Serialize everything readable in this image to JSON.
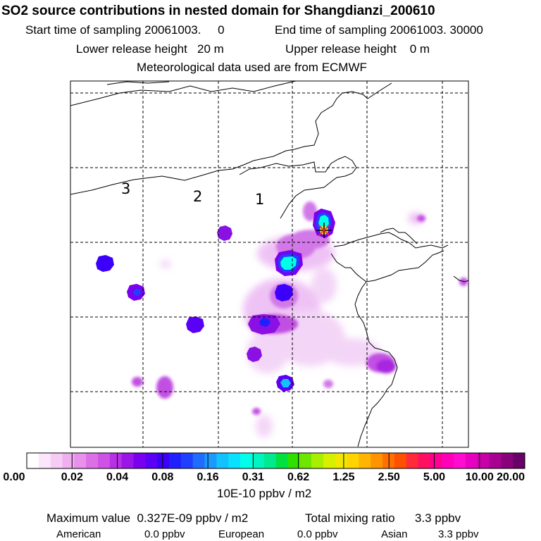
{
  "header": {
    "title": "SO2 source contributions in nested domain for Shangdianzi_200610",
    "start_label": "Start time of sampling 20061003.     0",
    "end_label": "End time of sampling 20061003. 30000",
    "lower_label": "Lower release height   20 m",
    "upper_label": "Upper release height    0 m",
    "met_label": "Meteorological data used are from ECMWF"
  },
  "map": {
    "region_labels": [
      "3",
      "2",
      "1"
    ],
    "station_marker": "star-marker-icon",
    "gridlines": "dashed",
    "plumes": [
      {
        "type": "hotspot",
        "level": 0.16,
        "name": "north-plume"
      },
      {
        "type": "hotspot",
        "level": 0.16,
        "name": "central-plume"
      },
      {
        "type": "hotspot",
        "level": 0.06,
        "name": "mid-spot"
      },
      {
        "type": "hotspot",
        "level": 0.06,
        "name": "south-spot"
      },
      {
        "type": "hotspot",
        "level": 0.05,
        "name": "west-spot"
      },
      {
        "type": "hotspot",
        "level": 0.05,
        "name": "southwest-spot"
      }
    ]
  },
  "colorbar": {
    "ticks": [
      "0.00",
      "0.02",
      "0.04",
      "0.08",
      "0.16",
      "0.31",
      "0.62",
      "1.25",
      "2.50",
      "5.00",
      "10.00",
      "20.00"
    ],
    "colors": [
      "#ffffff",
      "#fbe6fb",
      "#f6ccf6",
      "#f0b0f0",
      "#e890ec",
      "#dc6fe6",
      "#cf52e6",
      "#b830e6",
      "#9a15e8",
      "#7a00f0",
      "#5a00f5",
      "#3c00fa",
      "#2020ff",
      "#2040ff",
      "#1f6cff",
      "#1a99ff",
      "#12c2ff",
      "#0ae0ff",
      "#00ffe8",
      "#00f5c0",
      "#00eb8f",
      "#00e040",
      "#2de000",
      "#6ee600",
      "#a8ee00",
      "#d6f000",
      "#f0e800",
      "#ffd400",
      "#ffb400",
      "#ff9400",
      "#ff7000",
      "#ff5000",
      "#ff2a3a",
      "#ff1060",
      "#ff0090",
      "#ff00b8",
      "#ff0cd0",
      "#e800c0",
      "#c800a8",
      "#a80090",
      "#88007a",
      "#680068"
    ],
    "unit": "10E-10 ppbv / m2"
  },
  "footer": {
    "max_label": "Maximum value  0.327E-09 ppbv / m2",
    "total_label": "Total mixing ratio      3.3 ppbv",
    "american_label": "American",
    "american_value": "0.0 ppbv",
    "european_label": "European",
    "european_value": "0.0 ppbv",
    "asian_label": "Asian",
    "asian_value": "3.3 ppbv"
  }
}
